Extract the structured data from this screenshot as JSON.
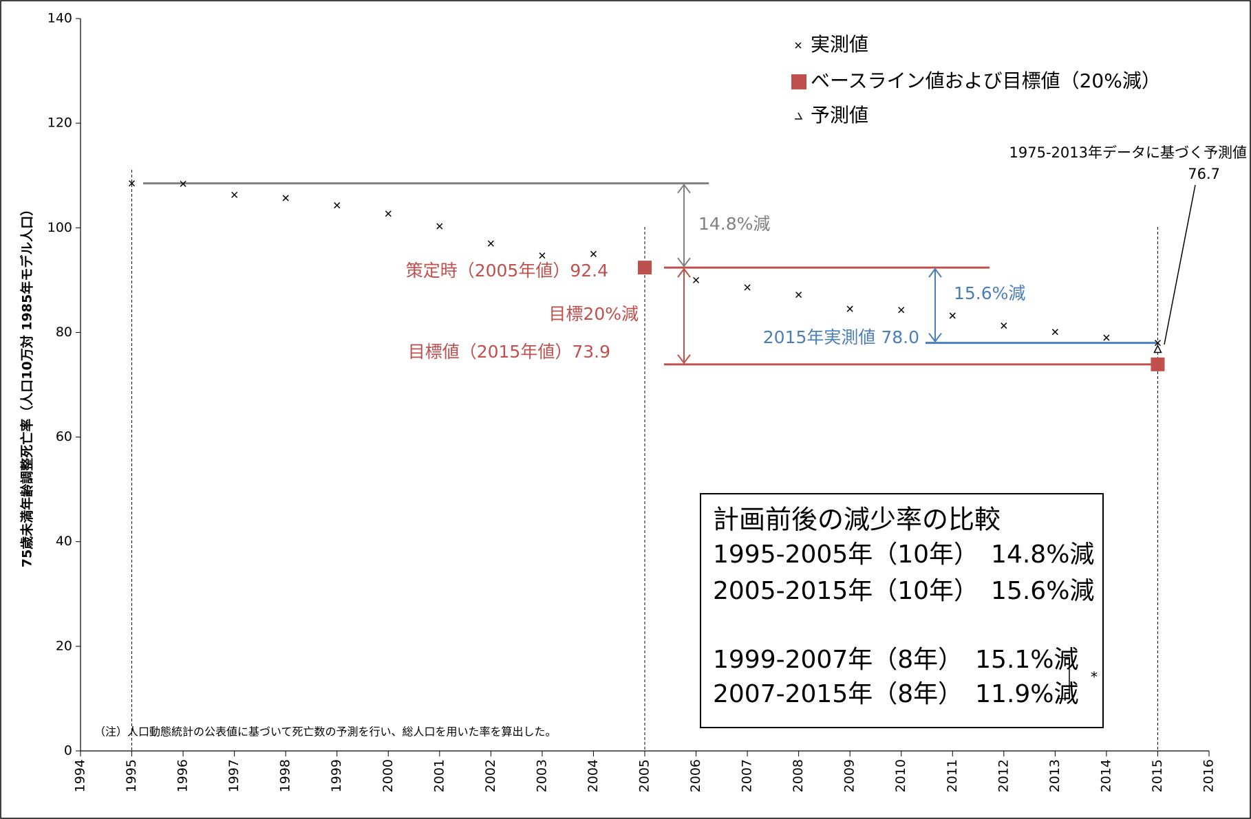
{
  "chart_data": {
    "type": "scatter",
    "y_label": "75歳未満年齢調整死亡率（人口10万対 1985年モデル人口）",
    "xlim": [
      1994,
      2016
    ],
    "xticks": [
      1994,
      1995,
      1996,
      1997,
      1998,
      1999,
      2000,
      2001,
      2002,
      2003,
      2004,
      2005,
      2006,
      2007,
      2008,
      2009,
      2010,
      2011,
      2012,
      2013,
      2014,
      2015,
      2016
    ],
    "ylim": [
      0,
      140
    ],
    "yticks": [
      0,
      20,
      40,
      60,
      80,
      100,
      120,
      140
    ],
    "series": [
      {
        "name": "実測値",
        "color": "#000000",
        "marker": "x",
        "x": [
          1995,
          1996,
          1997,
          1998,
          1999,
          2000,
          2001,
          2002,
          2003,
          2004,
          2006,
          2007,
          2008,
          2009,
          2010,
          2011,
          2012,
          2013,
          2014,
          2015
        ],
        "values": [
          108.5,
          108.4,
          106.3,
          105.7,
          104.3,
          102.7,
          100.3,
          97.0,
          94.7,
          95.0,
          90.0,
          88.6,
          87.2,
          84.5,
          84.3,
          83.2,
          81.3,
          80.1,
          79.0,
          78.0
        ]
      },
      {
        "name": "ベースライン値および目標値（20%減）",
        "color": "#c0504d",
        "marker": "square",
        "x": [
          2005,
          2015
        ],
        "values": [
          92.4,
          73.9
        ]
      },
      {
        "name": "予測値",
        "color": "#000000",
        "marker": "triangle",
        "x": [
          2015
        ],
        "values": [
          76.7
        ]
      }
    ],
    "annotations": {
      "first_reduction": "14.8%減",
      "baseline": "策定時（2005年値）92.4",
      "target_reduction": "目標20%減",
      "target": "目標値（2015年値）73.9",
      "measured_2015": "2015年実測値 78.0",
      "second_reduction": "15.6%減",
      "prediction_note": "1975-2013年データに基づく予測値",
      "prediction_value": "76.7",
      "footnote": "（注）人口動態統計の公表値に基づいて死亡数の予測を行い、総人口を用いた率を算出した。",
      "asterisk": "*"
    },
    "comparison_box": {
      "title": "計画前後の減少率の比較",
      "rows": [
        "1995-2005年（10年）　14.8%減",
        "2005-2015年（10年）　15.6%減",
        "1999-2007年（8年）　15.1%減",
        "2007-2015年（8年）　11.9%減"
      ]
    }
  }
}
